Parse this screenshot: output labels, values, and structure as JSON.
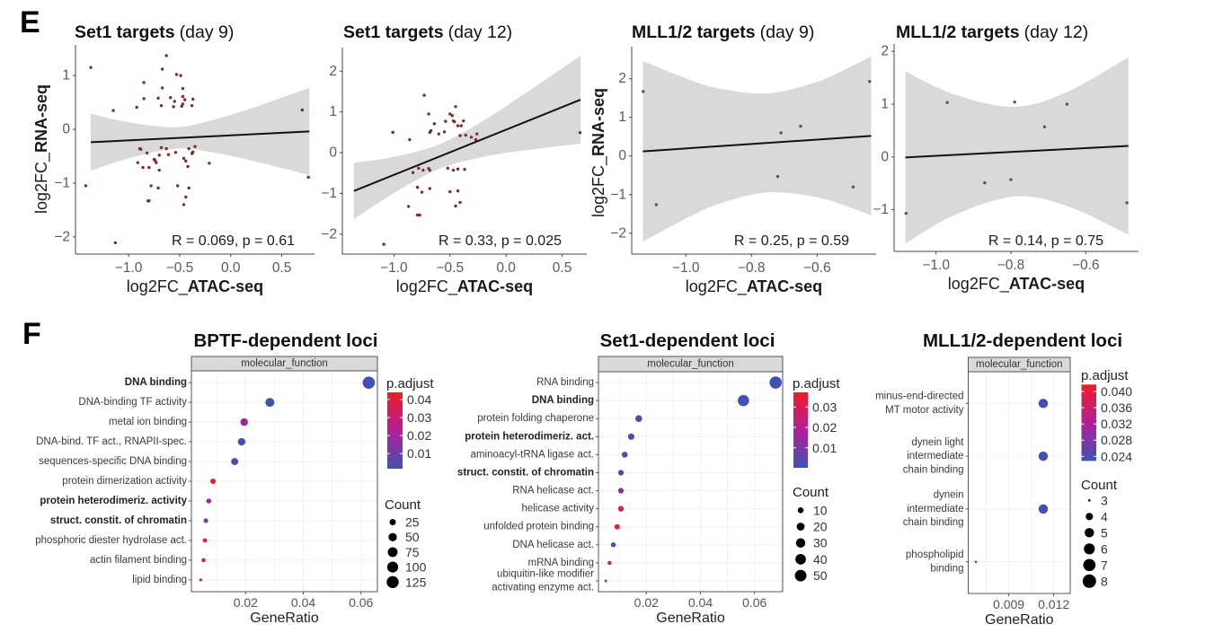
{
  "panel_labels": {
    "e": "E",
    "f": "F"
  },
  "palette": {
    "p_adjust_low": "#3f51b5",
    "p_adjust_mid": "#b21f98",
    "p_adjust_high": "#ee1c28",
    "ci_band": "#d9d9d9",
    "fit_line": "#111111",
    "strip_fill": "#d9d9d9"
  },
  "chart_data": [
    {
      "id": "e1",
      "type": "scatter",
      "title_bold": "Set1 targets",
      "title_rest": "(day 9)",
      "xlabel_prefix": "log2FC_",
      "xlabel_bold": "ATAC-seq",
      "ylabel_prefix": "log2FC_",
      "ylabel_bold": "RNA-seq",
      "xlim": [
        -1.52,
        0.82
      ],
      "ylim": [
        -2.32,
        1.57
      ],
      "xticks": [
        -1.0,
        -0.5,
        0.0,
        0.5
      ],
      "xtick_labels": [
        "−1.0",
        "−0.5",
        "0.0",
        "0.5"
      ],
      "yticks": [
        1,
        0,
        -1,
        -2
      ],
      "ytick_labels": [
        "1",
        "0",
        "−1",
        "−2"
      ],
      "grid": false,
      "point_color": "#7a2d2d",
      "annotation": "R = 0.069, p = 0.61",
      "fit_line": [
        [
          -1.37,
          -0.24
        ],
        [
          0.77,
          -0.04
        ]
      ],
      "ci_band": {
        "x": [
          -1.37,
          -1.0,
          -0.55,
          -0.2,
          0.2,
          0.5,
          0.77
        ],
        "upper": [
          0.29,
          0.13,
          0.04,
          0.16,
          0.39,
          0.59,
          0.77
        ],
        "lower": [
          -0.77,
          -0.54,
          -0.36,
          -0.42,
          -0.58,
          -0.72,
          -0.85
        ]
      },
      "points": [
        [
          -1.37,
          1.15
        ],
        [
          -0.63,
          1.37
        ],
        [
          -0.67,
          1.12
        ],
        [
          -0.53,
          1.02
        ],
        [
          -0.49,
          1.0
        ],
        [
          -0.85,
          0.87
        ],
        [
          -0.67,
          0.77
        ],
        [
          -0.47,
          0.76
        ],
        [
          -0.85,
          0.57
        ],
        [
          -0.71,
          0.58
        ],
        [
          -0.59,
          0.59
        ],
        [
          -0.55,
          0.52
        ],
        [
          -0.47,
          0.61
        ],
        [
          -0.45,
          0.55
        ],
        [
          -0.37,
          0.56
        ],
        [
          -0.68,
          0.44
        ],
        [
          -0.56,
          0.42
        ],
        [
          -0.48,
          0.43
        ],
        [
          -0.47,
          0.47
        ],
        [
          -0.38,
          0.44
        ],
        [
          -0.92,
          0.41
        ],
        [
          -1.15,
          0.35
        ],
        [
          0.7,
          0.36
        ],
        [
          0.76,
          -0.89
        ],
        [
          -1.42,
          -1.05
        ],
        [
          -1.13,
          -2.11
        ],
        [
          -0.89,
          -0.36
        ],
        [
          -0.88,
          -0.37
        ],
        [
          -0.68,
          -0.34
        ],
        [
          -0.63,
          -0.36
        ],
        [
          -0.41,
          -0.36
        ],
        [
          -0.35,
          -0.32
        ],
        [
          -0.37,
          -0.42
        ],
        [
          -0.38,
          -0.45
        ],
        [
          -0.82,
          -0.44
        ],
        [
          -0.7,
          -0.48
        ],
        [
          -0.61,
          -0.47
        ],
        [
          -0.54,
          -0.43
        ],
        [
          -0.75,
          -0.56
        ],
        [
          -0.74,
          -0.58
        ],
        [
          -0.73,
          -0.62
        ],
        [
          -0.46,
          -0.54
        ],
        [
          -0.44,
          -0.59
        ],
        [
          -0.91,
          -0.62
        ],
        [
          -0.86,
          -0.71
        ],
        [
          -0.8,
          -0.71
        ],
        [
          -0.7,
          -0.76
        ],
        [
          -0.42,
          -0.69
        ],
        [
          -0.21,
          -0.63
        ],
        [
          -0.78,
          -1.05
        ],
        [
          -0.71,
          -1.09
        ],
        [
          -0.52,
          -1.05
        ],
        [
          -0.41,
          -1.09
        ],
        [
          -0.81,
          -1.33
        ],
        [
          -0.8,
          -1.33
        ],
        [
          -0.44,
          -1.26
        ],
        [
          -0.46,
          -1.4
        ]
      ]
    },
    {
      "id": "e2",
      "type": "scatter",
      "title_bold": "Set1 targets",
      "title_rest": "(day 12)",
      "xlabel_prefix": "log2FC_",
      "xlabel_bold": "ATAC-seq",
      "ylabel_prefix": "",
      "ylabel_bold": "",
      "xlim": [
        -1.46,
        0.72
      ],
      "ylim": [
        -2.49,
        2.58
      ],
      "xticks": [
        -1.0,
        -0.5,
        0.0,
        0.5
      ],
      "xtick_labels": [
        "−1.0",
        "−0.5",
        "0.0",
        "0.5"
      ],
      "yticks": [
        2,
        1,
        0,
        -1,
        -2
      ],
      "ytick_labels": [
        "2",
        "1",
        "0",
        "−1",
        "−2"
      ],
      "grid": false,
      "point_color": "#7a2d2d",
      "annotation": "R = 0.33, p = 0.025",
      "fit_line": [
        [
          -1.357,
          -0.94
        ],
        [
          0.664,
          1.3
        ]
      ],
      "ci_band": {
        "x": [
          -1.357,
          -1.0,
          -0.6,
          -0.2,
          0.2,
          0.664
        ],
        "upper": [
          -0.25,
          -0.1,
          0.2,
          0.79,
          1.51,
          2.38
        ],
        "lower": [
          -1.63,
          -0.99,
          -0.4,
          -0.1,
          0.07,
          0.22
        ]
      },
      "points": [
        [
          -0.73,
          1.41
        ],
        [
          -0.45,
          1.13
        ],
        [
          -0.69,
          0.95
        ],
        [
          -0.5,
          0.95
        ],
        [
          -0.48,
          0.91
        ],
        [
          -0.54,
          0.77
        ],
        [
          -0.47,
          0.78
        ],
        [
          -0.46,
          0.76
        ],
        [
          -0.38,
          0.78
        ],
        [
          -0.64,
          0.71
        ],
        [
          -0.43,
          0.66
        ],
        [
          -0.4,
          0.66
        ],
        [
          -1.01,
          0.5
        ],
        [
          -0.67,
          0.54
        ],
        [
          -0.68,
          0.5
        ],
        [
          -0.6,
          0.46
        ],
        [
          -0.55,
          0.51
        ],
        [
          -0.41,
          0.42
        ],
        [
          -0.36,
          0.43
        ],
        [
          -0.31,
          0.38
        ],
        [
          -0.26,
          0.46
        ],
        [
          -0.27,
          0.32
        ],
        [
          -0.86,
          0.32
        ],
        [
          0.66,
          0.49
        ],
        [
          -0.83,
          -0.49
        ],
        [
          -0.78,
          -0.38
        ],
        [
          -0.74,
          -0.43
        ],
        [
          -0.69,
          -0.39
        ],
        [
          -0.68,
          -0.43
        ],
        [
          -0.52,
          -0.38
        ],
        [
          -0.47,
          -0.43
        ],
        [
          -0.43,
          -0.4
        ],
        [
          -0.37,
          -0.41
        ],
        [
          -0.79,
          -0.85
        ],
        [
          -0.75,
          -0.97
        ],
        [
          -0.68,
          -0.88
        ],
        [
          -0.5,
          -0.96
        ],
        [
          -0.43,
          -0.94
        ],
        [
          -0.87,
          -1.32
        ],
        [
          -0.45,
          -1.31
        ],
        [
          -0.41,
          -1.22
        ],
        [
          -0.79,
          -1.53
        ],
        [
          -0.77,
          -1.53
        ],
        [
          -1.09,
          -2.25
        ]
      ]
    },
    {
      "id": "e3",
      "type": "scatter",
      "title_bold": "MLL1/2 targets",
      "title_rest": "(day 9)",
      "xlabel_prefix": "log2FC_",
      "xlabel_bold": "ATAC-seq",
      "ylabel_prefix": "log2FC_",
      "ylabel_bold": "RNA-seq",
      "xlim": [
        -1.165,
        -0.42
      ],
      "ylim": [
        -2.54,
        2.83
      ],
      "xticks": [
        -1.0,
        -0.8,
        -0.6
      ],
      "xtick_labels": [
        "−1.0",
        "−0.8",
        "−0.6"
      ],
      "yticks": [
        2,
        1,
        0,
        -1,
        -2
      ],
      "ytick_labels": [
        "2",
        "1",
        "0",
        "−1",
        "−2"
      ],
      "grid": false,
      "point_color": "#555555",
      "annotation": "R = 0.25, p = 0.59",
      "fit_line": [
        [
          -1.131,
          0.12
        ],
        [
          -0.435,
          0.52
        ]
      ],
      "ci_band": {
        "x": [
          -1.131,
          -1.0,
          -0.9,
          -0.75,
          -0.6,
          -0.5,
          -0.435
        ],
        "upper": [
          2.46,
          2.01,
          1.75,
          1.62,
          1.92,
          2.3,
          2.58
        ],
        "lower": [
          -2.22,
          -1.62,
          -1.24,
          -0.94,
          -1.07,
          -1.33,
          -1.54
        ]
      },
      "points": [
        [
          -1.13,
          1.67
        ],
        [
          -1.09,
          -1.26
        ],
        [
          -0.71,
          0.6
        ],
        [
          -0.65,
          0.77
        ],
        [
          -0.72,
          -0.53
        ],
        [
          -0.49,
          -0.8
        ],
        [
          -0.44,
          1.93
        ]
      ]
    },
    {
      "id": "e4",
      "type": "scatter",
      "title_bold": "MLL1/2 targets",
      "title_rest": "(day 12)",
      "xlabel_prefix": "log2FC_",
      "xlabel_bold": "ATAC-seq",
      "ylabel_prefix": "",
      "ylabel_bold": "",
      "xlim": [
        -1.112,
        -0.459
      ],
      "ylim": [
        -1.79,
        2.14
      ],
      "xticks": [
        -1.0,
        -0.8,
        -0.6
      ],
      "xtick_labels": [
        "−1.0",
        "−0.8",
        "−0.6"
      ],
      "yticks": [
        2,
        1,
        0,
        -1
      ],
      "ytick_labels": [
        "2",
        "1",
        "0",
        "−1"
      ],
      "grid": false,
      "point_color": "#555555",
      "annotation": "R = 0.14, p = 0.75",
      "fit_line": [
        [
          -1.082,
          -0.01
        ],
        [
          -0.486,
          0.21
        ]
      ],
      "ci_band": {
        "x": [
          -1.082,
          -0.95,
          -0.79,
          -0.65,
          -0.486
        ],
        "upper": [
          1.62,
          1.18,
          0.95,
          1.23,
          1.89
        ],
        "lower": [
          -1.64,
          -1.1,
          -0.75,
          -0.93,
          -1.47
        ]
      },
      "points": [
        [
          -0.97,
          1.03
        ],
        [
          -0.79,
          1.04
        ],
        [
          -0.65,
          1.0
        ],
        [
          -0.71,
          0.57
        ],
        [
          -0.87,
          -0.49
        ],
        [
          -0.8,
          -0.43
        ],
        [
          -1.08,
          -1.07
        ],
        [
          -0.49,
          -0.87
        ]
      ]
    },
    {
      "id": "f1",
      "type": "dotplot",
      "title": "BPTF-dependent loci",
      "facet": "molecular_function",
      "xlabel": "GeneRatio",
      "xlim": [
        0.0012,
        0.0657
      ],
      "xticks": [
        0.02,
        0.04,
        0.06
      ],
      "xtick_labels": [
        "0.02",
        "0.04",
        "0.06"
      ],
      "grid": true,
      "categories": [
        {
          "label": "DNA binding",
          "bold": true,
          "gene_ratio": 0.0627,
          "count": 130,
          "p_adjust": 0.0016
        },
        {
          "label": "DNA-binding TF activity",
          "bold": false,
          "gene_ratio": 0.0284,
          "count": 59,
          "p_adjust": 0.002
        },
        {
          "label": "metal ion binding",
          "bold": false,
          "gene_ratio": 0.0195,
          "count": 40,
          "p_adjust": 0.019
        },
        {
          "label": "DNA-bind. TF act., RNAPII-spec.",
          "bold": false,
          "gene_ratio": 0.0186,
          "count": 39,
          "p_adjust": 0.003
        },
        {
          "label": "sequences-specific DNA binding",
          "bold": false,
          "gene_ratio": 0.0162,
          "count": 34,
          "p_adjust": 0.003
        },
        {
          "label": "protein dimerization activity",
          "bold": false,
          "gene_ratio": 0.0087,
          "count": 18,
          "p_adjust": 0.042
        },
        {
          "label": "protein heterodimeriz. activity",
          "bold": true,
          "gene_ratio": 0.0072,
          "count": 15,
          "p_adjust": 0.018
        },
        {
          "label": "struct. constit. of chromatin",
          "bold": true,
          "gene_ratio": 0.0062,
          "count": 13,
          "p_adjust": 0.016
        },
        {
          "label": "phosphoric diester hydrolase act.",
          "bold": false,
          "gene_ratio": 0.0059,
          "count": 12,
          "p_adjust": 0.041
        },
        {
          "label": "actin filament binding",
          "bold": false,
          "gene_ratio": 0.0054,
          "count": 11,
          "p_adjust": 0.04
        },
        {
          "label": "lipid binding",
          "bold": false,
          "gene_ratio": 0.0044,
          "count": 9,
          "p_adjust": 0.02
        }
      ],
      "color_legend": {
        "title": "p.adjust",
        "range": [
          0.0016,
          0.044
        ],
        "ticks": [
          0.04,
          0.03,
          0.02,
          0.01
        ],
        "tick_labels": [
          "0.04",
          "0.03",
          "0.02",
          "0.01"
        ]
      },
      "size_legend": {
        "title": "Count",
        "breaks": [
          25,
          50,
          75,
          100,
          125
        ],
        "labels": [
          "25",
          "50",
          "75",
          "100",
          "125"
        ],
        "domain": [
          9,
          130
        ]
      }
    },
    {
      "id": "f2",
      "type": "dotplot",
      "title": "Set1-dependent loci",
      "facet": "molecular_function",
      "xlabel": "GeneRatio",
      "xlim": [
        0.0023,
        0.0704
      ],
      "xticks": [
        0.02,
        0.04,
        0.06
      ],
      "xtick_labels": [
        "0.02",
        "0.04",
        "0.06"
      ],
      "grid": true,
      "categories": [
        {
          "label": "RNA binding",
          "bold": false,
          "gene_ratio": 0.0678,
          "count": 57,
          "p_adjust": 0.0005
        },
        {
          "label": "DNA binding",
          "bold": true,
          "gene_ratio": 0.0559,
          "count": 47,
          "p_adjust": 0.0005
        },
        {
          "label": "protein folding chaperone",
          "bold": false,
          "gene_ratio": 0.0172,
          "count": 14,
          "p_adjust": 0.001
        },
        {
          "label": "protein heterodimeriz. act.",
          "bold": true,
          "gene_ratio": 0.0144,
          "count": 12,
          "p_adjust": 0.002
        },
        {
          "label": "aminoacyl-tRNA ligase act.",
          "bold": false,
          "gene_ratio": 0.012,
          "count": 10,
          "p_adjust": 0.002
        },
        {
          "label": "struct. constit. of chromatin",
          "bold": true,
          "gene_ratio": 0.0106,
          "count": 9,
          "p_adjust": 0.008
        },
        {
          "label": "RNA helicase act.",
          "bold": false,
          "gene_ratio": 0.0106,
          "count": 9,
          "p_adjust": 0.013
        },
        {
          "label": "helicase activity",
          "bold": false,
          "gene_ratio": 0.0106,
          "count": 9,
          "p_adjust": 0.028
        },
        {
          "label": "unfolded protein binding",
          "bold": false,
          "gene_ratio": 0.0092,
          "count": 8,
          "p_adjust": 0.036
        },
        {
          "label": "DNA helicase act.",
          "bold": false,
          "gene_ratio": 0.0078,
          "count": 7,
          "p_adjust": 0.004
        },
        {
          "label": "mRNA binding",
          "bold": false,
          "gene_ratio": 0.0064,
          "count": 5,
          "p_adjust": 0.029
        },
        {
          "label": "ubiquitin-like modifier\nactivating enzyme act.",
          "bold": false,
          "gene_ratio": 0.005,
          "count": 4,
          "p_adjust": 0.033
        }
      ],
      "color_legend": {
        "title": "p.adjust",
        "range": [
          0.0002,
          0.0372
        ],
        "ticks": [
          0.03,
          0.02,
          0.01
        ],
        "tick_labels": [
          "0.03",
          "0.02",
          "0.01"
        ]
      },
      "size_legend": {
        "title": "Count",
        "breaks": [
          10,
          20,
          30,
          40,
          50
        ],
        "labels": [
          "10",
          "20",
          "30",
          "40",
          "50"
        ],
        "domain": [
          4,
          57
        ]
      }
    },
    {
      "id": "f3",
      "type": "dotplot",
      "title": "MLL1/2-dependent loci",
      "facet": "molecular_function",
      "xlabel": "GeneRatio",
      "xlim": [
        0.0063,
        0.0131
      ],
      "xticks": [
        0.009,
        0.012
      ],
      "xtick_labels": [
        "0.009",
        "0.012"
      ],
      "grid": true,
      "categories": [
        {
          "label": "minus-end-directed\nMT motor activity",
          "bold": false,
          "gene_ratio": 0.0113,
          "count": 5,
          "p_adjust": 0.0235
        },
        {
          "label": "dynein light\nintermediate\nchain binding",
          "bold": false,
          "gene_ratio": 0.0113,
          "count": 5,
          "p_adjust": 0.0235
        },
        {
          "label": "dynein\nintermediate\nchain binding",
          "bold": false,
          "gene_ratio": 0.0113,
          "count": 5,
          "p_adjust": 0.0235
        },
        {
          "label": "phospholipid\nbinding",
          "bold": false,
          "gene_ratio": 0.0068,
          "count": 3,
          "p_adjust": 0.041
        }
      ],
      "color_legend": {
        "title": "p.adjust",
        "range": [
          0.0229,
          0.0417
        ],
        "ticks": [
          0.04,
          0.036,
          0.032,
          0.028,
          0.024
        ],
        "tick_labels": [
          "0.040",
          "0.036",
          "0.032",
          "0.028",
          "0.024"
        ]
      },
      "size_legend": {
        "title": "Count",
        "breaks": [
          3,
          4,
          5,
          6,
          7,
          8
        ],
        "labels": [
          "3",
          "4",
          "5",
          "6",
          "7",
          "8"
        ],
        "domain": [
          3,
          8
        ]
      }
    }
  ]
}
